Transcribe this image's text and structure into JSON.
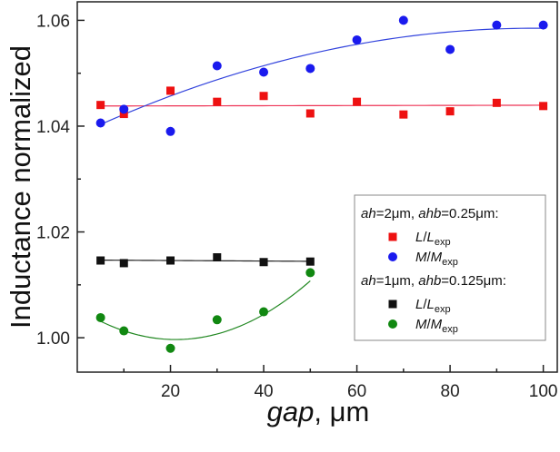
{
  "chart_data": {
    "type": "scatter",
    "xlabel_italic": "gap",
    "xlabel_rest": ", μm",
    "ylabel": "Inductance normalized",
    "xlim": [
      0,
      103
    ],
    "ylim": [
      0.9935,
      1.0635
    ],
    "xticks": [
      20,
      40,
      60,
      80,
      100
    ],
    "yticks": [
      1.0,
      1.02,
      1.04,
      1.06
    ],
    "ytick_labels": [
      "1.00",
      "1.02",
      "1.04",
      "1.06"
    ],
    "grid": false,
    "legend_position": "right",
    "series": [
      {
        "id": "l1",
        "group": 1,
        "name_italic": "L",
        "name_rest": "/",
        "name_italic2": "L",
        "name_sub": "exp",
        "marker": "square",
        "color": "#ee1111",
        "fit_color": "#ee3355",
        "x": [
          5,
          10,
          20,
          30,
          40,
          50,
          60,
          70,
          80,
          90,
          100
        ],
        "y": [
          1.044,
          1.0423,
          1.0467,
          1.0446,
          1.0457,
          1.0424,
          1.0446,
          1.0422,
          1.0428,
          1.0444,
          1.0438
        ],
        "fit": {
          "a": 0.0,
          "b": 1.5e-06,
          "c": 1.0438
        }
      },
      {
        "id": "m1",
        "group": 1,
        "name_italic": "M",
        "name_rest": "/",
        "name_italic2": "M",
        "name_sub": "exp",
        "marker": "circle",
        "color": "#1a1aee",
        "fit_color": "#3344dd",
        "x": [
          5,
          10,
          20,
          30,
          40,
          50,
          60,
          70,
          80,
          90,
          100
        ],
        "y": [
          1.0406,
          1.0432,
          1.039,
          1.0514,
          1.0502,
          1.0509,
          1.0563,
          1.06,
          1.0545,
          1.0591,
          1.0591
        ],
        "fit": {
          "a": -2.1e-06,
          "b": 0.000412,
          "c": 1.0383
        }
      },
      {
        "id": "l2",
        "group": 2,
        "name_italic": "L",
        "name_rest": "/",
        "name_italic2": "L",
        "name_sub": "exp",
        "marker": "square",
        "color": "#111111",
        "fit_color": "#222222",
        "x": [
          5,
          10,
          20,
          30,
          40,
          50
        ],
        "y": [
          1.0146,
          1.0141,
          1.0146,
          1.0152,
          1.0143,
          1.0144
        ],
        "fit": {
          "a": 0.0,
          "b": -5e-06,
          "c": 1.0147
        }
      },
      {
        "id": "m2",
        "group": 2,
        "name_italic": "M",
        "name_rest": "/",
        "name_italic2": "M",
        "name_sub": "exp",
        "marker": "circle",
        "color": "#118811",
        "fit_color": "#228822",
        "x": [
          5,
          10,
          20,
          30,
          40,
          50
        ],
        "y": [
          1.0038,
          1.0013,
          0.998,
          1.0034,
          1.0049,
          1.0123
        ],
        "fit": {
          "a": 1.33e-05,
          "b": -0.000562,
          "c": 1.0056
        }
      }
    ],
    "legend_groups": [
      {
        "header_parts": [
          {
            "t": "ah",
            "i": true
          },
          {
            "t": "=2μm, ",
            "i": false
          },
          {
            "t": "ahb",
            "i": true
          },
          {
            "t": "=0.25μm:",
            "i": false
          }
        ],
        "series": [
          "l1",
          "m1"
        ]
      },
      {
        "header_parts": [
          {
            "t": "ah",
            "i": true
          },
          {
            "t": "=1μm, ",
            "i": false
          },
          {
            "t": "ahb",
            "i": true
          },
          {
            "t": "=0.125μm:",
            "i": false
          }
        ],
        "series": [
          "l2",
          "m2"
        ]
      }
    ]
  }
}
